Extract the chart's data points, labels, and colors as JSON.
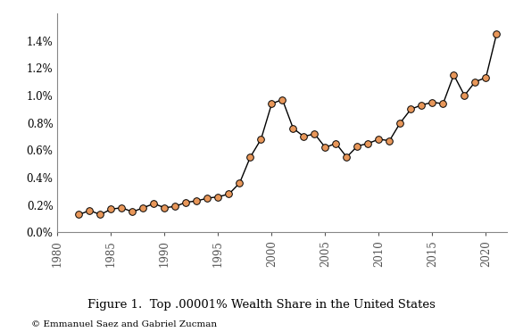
{
  "years": [
    1982,
    1983,
    1984,
    1985,
    1986,
    1987,
    1988,
    1989,
    1990,
    1991,
    1992,
    1993,
    1994,
    1995,
    1996,
    1997,
    1998,
    1999,
    2000,
    2001,
    2002,
    2003,
    2004,
    2005,
    2006,
    2007,
    2008,
    2009,
    2010,
    2011,
    2012,
    2013,
    2014,
    2015,
    2016,
    2017,
    2018,
    2019,
    2020,
    2021
  ],
  "values": [
    0.0013,
    0.0016,
    0.0013,
    0.0017,
    0.0018,
    0.0015,
    0.0018,
    0.0021,
    0.0018,
    0.0019,
    0.0022,
    0.0023,
    0.0025,
    0.0026,
    0.0028,
    0.0036,
    0.0055,
    0.0068,
    0.0094,
    0.0097,
    0.0076,
    0.007,
    0.0072,
    0.0062,
    0.0065,
    0.0055,
    0.0063,
    0.0065,
    0.0068,
    0.0067,
    0.008,
    0.009,
    0.0093,
    0.0095,
    0.0094,
    0.0115,
    0.01,
    0.011,
    0.0113,
    0.0145
  ],
  "line_color": "#000000",
  "marker_facecolor": "#E8975A",
  "marker_edgecolor": "#000000",
  "marker_size": 5.5,
  "marker_linewidth": 0.7,
  "line_width": 1.0,
  "xlim": [
    1980,
    2022
  ],
  "ylim": [
    0.0,
    0.016
  ],
  "xticks": [
    1980,
    1985,
    1990,
    1995,
    2000,
    2005,
    2010,
    2015,
    2020
  ],
  "yticks": [
    0.0,
    0.002,
    0.004,
    0.006,
    0.008,
    0.01,
    0.012,
    0.014
  ],
  "title": "Figure 1.  Top .00001% Wealth Share in the United States",
  "caption": "© Emmanuel Saez and Gabriel Zucman",
  "title_fontsize": 9.5,
  "caption_fontsize": 7.5,
  "bg_color": "#ffffff",
  "spine_color": "#888888"
}
